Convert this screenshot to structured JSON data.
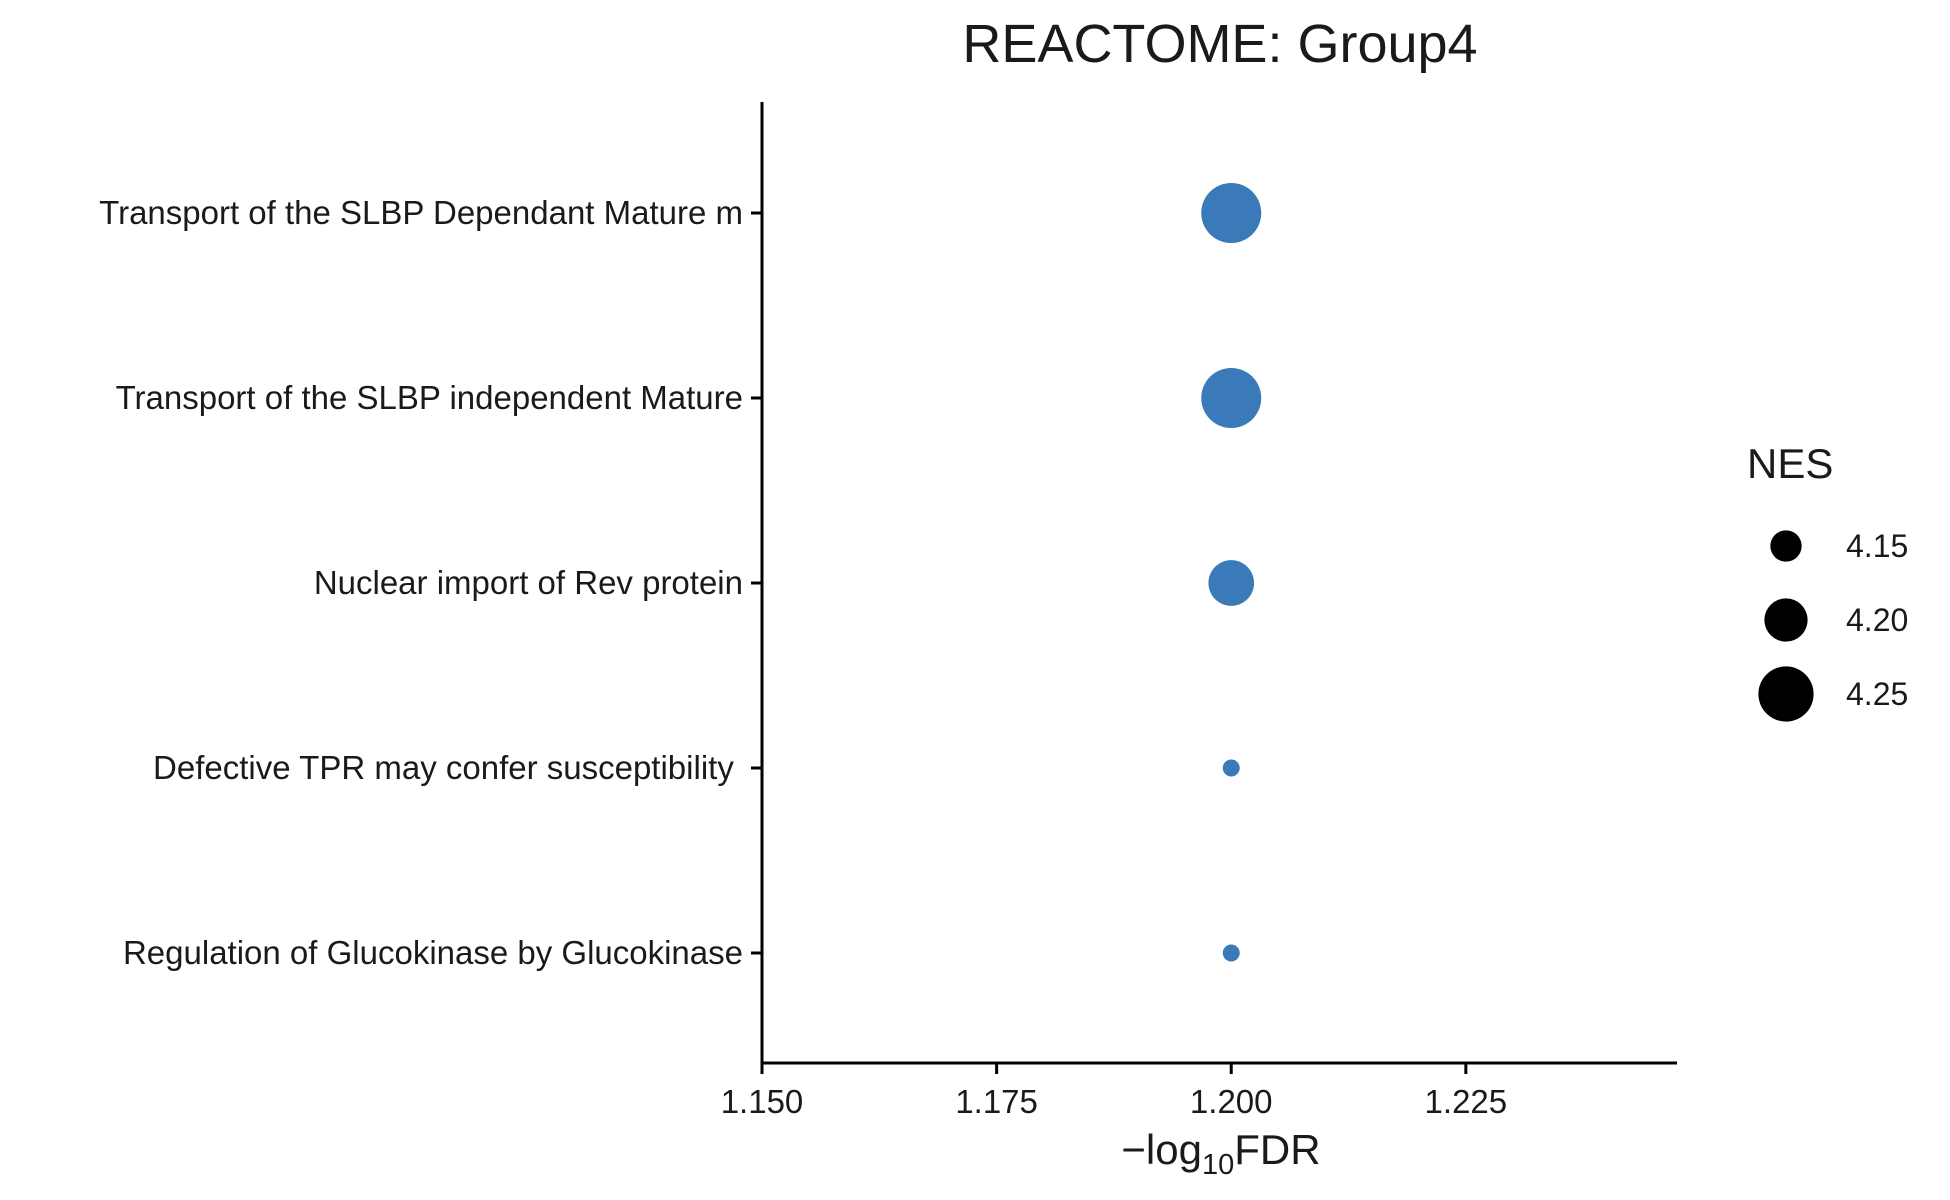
{
  "chart_data": {
    "type": "scatter",
    "title": "REACTOME: Group4",
    "xlabel": {
      "prefix": "−log",
      "subscript": "10",
      "suffix": "FDR"
    },
    "ylabel": "",
    "xlim": [
      1.15,
      1.2475
    ],
    "x_ticks": [
      1.15,
      1.175,
      1.2,
      1.225
    ],
    "x_tick_labels": [
      "1.150",
      "1.175",
      "1.200",
      "1.225"
    ],
    "categories": [
      "Transport of the SLBP Dependant Mature m",
      "Transport of the SLBP independent Mature",
      "Nuclear import of Rev protein",
      "Defective TPR may confer susceptibility ",
      "Regulation of Glucokinase by Glucokinase"
    ],
    "series": [
      {
        "x": [
          1.2,
          1.2,
          1.2,
          1.2,
          1.2
        ],
        "nes": [
          4.27,
          4.27,
          4.21,
          4.09,
          4.09
        ],
        "color": "#3a7ab8"
      }
    ],
    "size_legend": {
      "title": "NES",
      "values": [
        4.15,
        4.2,
        4.25
      ],
      "labels": [
        "4.15",
        "4.20",
        "4.25"
      ],
      "color": "#000000"
    },
    "grid": false,
    "legend_position": "right"
  }
}
